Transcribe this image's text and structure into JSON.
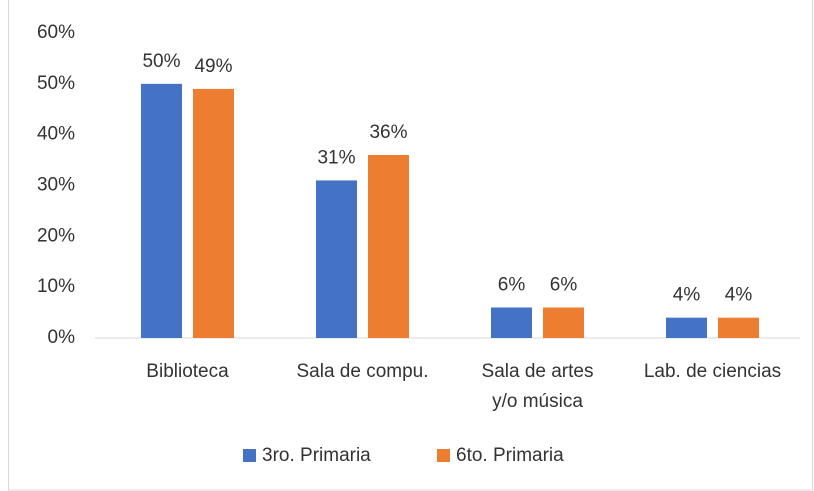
{
  "chart_data": {
    "type": "bar",
    "categories": [
      "Biblioteca",
      "Sala de compu.",
      "Sala de artes y/o música",
      "Lab. de ciencias"
    ],
    "series": [
      {
        "name": "3ro. Primaria",
        "color": "#4472c4",
        "values": [
          50,
          31,
          6,
          4
        ],
        "value_labels": [
          "50%",
          "31%",
          "6%",
          "4%"
        ]
      },
      {
        "name": "6to. Primaria",
        "color": "#ed7d31",
        "values": [
          49,
          36,
          6,
          4
        ],
        "value_labels": [
          "49%",
          "36%",
          "6%",
          "4%"
        ]
      }
    ],
    "ylim": [
      0,
      60
    ],
    "yticks": [
      {
        "value": 0,
        "label": "0%"
      },
      {
        "value": 10,
        "label": "10%"
      },
      {
        "value": 20,
        "label": "20%"
      },
      {
        "value": 30,
        "label": "30%"
      },
      {
        "value": 40,
        "label": "40%"
      },
      {
        "value": 50,
        "label": "50%"
      },
      {
        "value": 60,
        "label": "60%"
      }
    ],
    "grid": false,
    "legend": "bottom"
  }
}
